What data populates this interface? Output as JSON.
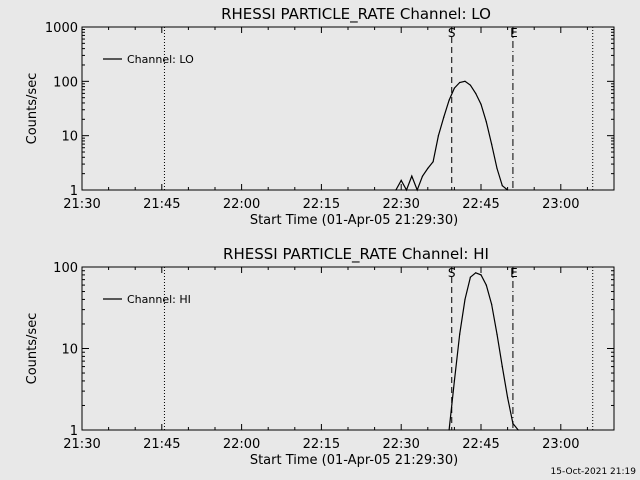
{
  "chart_data": [
    {
      "type": "line",
      "title": "RHESSI PARTICLE_RATE Channel: LO",
      "xlabel": "Start Time (01-Apr-05 21:29:30)",
      "ylabel": "Counts/sec",
      "xlim": [
        "21:30",
        "23:10"
      ],
      "ylim": [
        1,
        1000
      ],
      "yscale": "log",
      "xticks": [
        "21:30",
        "21:45",
        "22:00",
        "22:15",
        "22:30",
        "22:45",
        "23:00"
      ],
      "yticks": [
        "1",
        "10",
        "100",
        "1000"
      ],
      "legend": "top-left",
      "series": [
        {
          "name": "Channel: LO",
          "color": "#000000",
          "x": [
            "22:29",
            "22:30",
            "22:31",
            "22:32",
            "22:33",
            "22:34",
            "22:35",
            "22:36",
            "22:37",
            "22:38",
            "22:39",
            "22:40",
            "22:41",
            "22:42",
            "22:43",
            "22:44",
            "22:45",
            "22:46",
            "22:47",
            "22:48",
            "22:49",
            "22:50"
          ],
          "y": [
            1,
            1.5,
            1,
            1.8,
            1,
            1.8,
            2.5,
            3.3,
            10,
            22,
            45,
            75,
            95,
            100,
            85,
            60,
            38,
            18,
            7,
            2.5,
            1.2,
            1
          ]
        }
      ],
      "markers": [
        {
          "label": "S",
          "x": "22:39.5",
          "style": "dashed"
        },
        {
          "label": "E",
          "x": "22:51",
          "style": "dash-dot"
        }
      ],
      "vlines_dotted": [
        "21:45.5",
        "23:06"
      ]
    },
    {
      "type": "line",
      "title": "RHESSI PARTICLE_RATE Channel: HI",
      "xlabel": "Start Time (01-Apr-05 21:29:30)",
      "ylabel": "Counts/sec",
      "xlim": [
        "21:30",
        "23:10"
      ],
      "ylim": [
        1,
        100
      ],
      "yscale": "log",
      "xticks": [
        "21:30",
        "21:45",
        "22:00",
        "22:15",
        "22:30",
        "22:45",
        "23:00"
      ],
      "yticks": [
        "1",
        "10",
        "100"
      ],
      "legend": "top-left",
      "series": [
        {
          "name": "Channel: HI",
          "color": "#000000",
          "x": [
            "22:39",
            "22:40",
            "22:41",
            "22:42",
            "22:43",
            "22:44",
            "22:45",
            "22:46",
            "22:47",
            "22:48",
            "22:49",
            "22:50",
            "22:51",
            "22:52"
          ],
          "y": [
            1,
            4,
            15,
            40,
            75,
            85,
            80,
            60,
            35,
            15,
            6,
            2.5,
            1.2,
            1
          ]
        }
      ],
      "markers": [
        {
          "label": "S",
          "x": "22:39.5",
          "style": "dashed"
        },
        {
          "label": "E",
          "x": "22:51",
          "style": "dash-dot"
        }
      ],
      "vlines_dotted": [
        "21:45.5",
        "23:06"
      ]
    }
  ],
  "footer": {
    "timestamp": "15-Oct-2021 21:19"
  }
}
